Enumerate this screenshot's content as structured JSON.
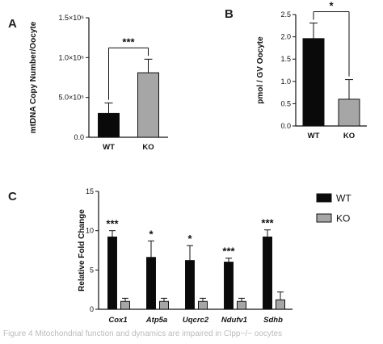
{
  "panels": {
    "A": "A",
    "B": "B",
    "C": "C"
  },
  "caption": "Figure 4 Mitochondrial function and dynamics are impaired in Clpp−/− oocytes",
  "legend": {
    "wt": "WT",
    "ko": "KO"
  },
  "colors": {
    "wt": "#0a0a0a",
    "ko": "#a6a6a6"
  },
  "chart_data": [
    {
      "id": "A",
      "type": "bar",
      "categories": [
        "WT",
        "KO"
      ],
      "values": [
        300000,
        810000
      ],
      "errors": [
        130000,
        170000
      ],
      "ylabel": "mtDNA Copy Number/Oocyte",
      "ylim": [
        0,
        1500000
      ],
      "yticks": [
        0,
        500000,
        1000000,
        1500000
      ],
      "ytick_labels": [
        "0.0",
        "5.0×10⁵",
        "1.0×10⁶",
        "1.5×10⁶"
      ],
      "significance": "***",
      "grid": false
    },
    {
      "id": "B",
      "type": "bar",
      "categories": [
        "WT",
        "KO"
      ],
      "values": [
        1.96,
        0.6
      ],
      "errors": [
        0.35,
        0.44
      ],
      "ylabel": "pmol / GV Oocyte",
      "ylim": [
        0,
        2.5
      ],
      "yticks": [
        0,
        0.5,
        1.0,
        1.5,
        2.0,
        2.5
      ],
      "ytick_labels": [
        "0.0",
        "0.5",
        "1.0",
        "1.5",
        "2.0",
        "2.5"
      ],
      "significance": "*",
      "grid": false
    },
    {
      "id": "C",
      "type": "bar",
      "categories": [
        "Cox1",
        "Atp5a",
        "Uqcrc2",
        "Ndufv1",
        "Sdhb"
      ],
      "series": [
        {
          "name": "WT",
          "values": [
            9.2,
            6.6,
            6.2,
            6.0,
            9.2
          ],
          "errors": [
            0.8,
            2.1,
            1.9,
            0.5,
            0.9
          ]
        },
        {
          "name": "KO",
          "values": [
            1.0,
            1.0,
            1.0,
            1.0,
            1.2
          ],
          "errors": [
            0.4,
            0.4,
            0.4,
            0.4,
            1.0
          ]
        }
      ],
      "significance": [
        "***",
        "*",
        "*",
        "***",
        "***"
      ],
      "ylabel": "Relative Fold Change",
      "ylim": [
        0,
        15
      ],
      "yticks": [
        0,
        5,
        10,
        15
      ],
      "ytick_labels": [
        "0",
        "5",
        "10",
        "15"
      ],
      "legend_position": "top-right",
      "grid": false
    }
  ]
}
